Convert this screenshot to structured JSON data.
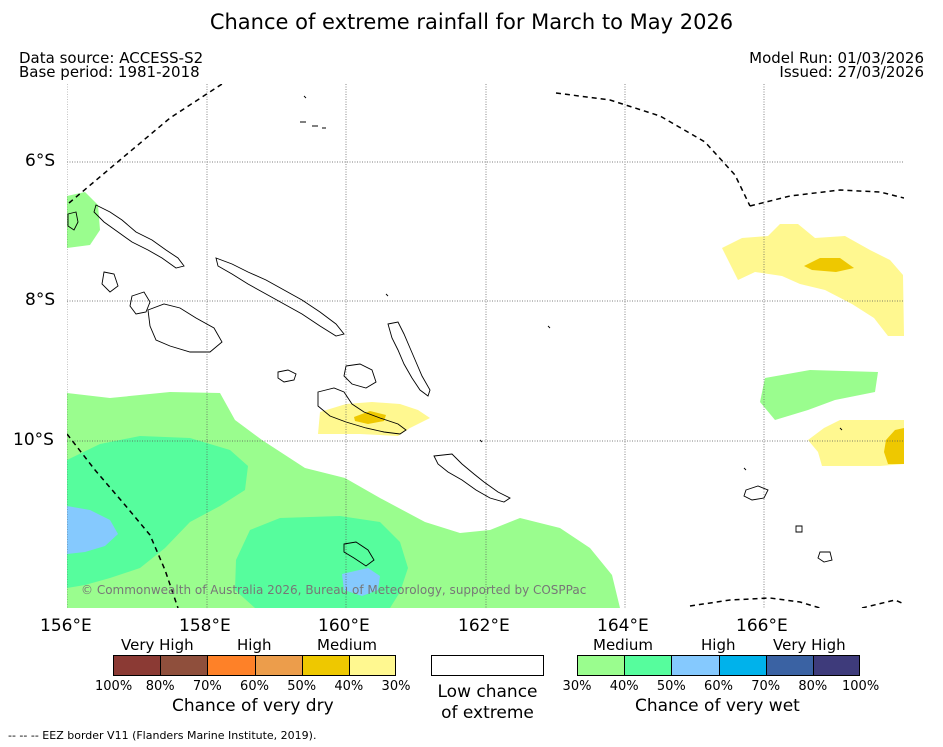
{
  "title": "Chance of extreme rainfall for March to May 2026",
  "meta": {
    "data_source": "Data source: ACCESS-S2",
    "base_period": "Base period: 1981-2018",
    "model_run": "Model Run: 01/03/2026",
    "issued": "Issued: 27/03/2026"
  },
  "axes": {
    "lat_ticks": [
      "6°S",
      "8°S",
      "10°S"
    ],
    "lon_ticks": [
      "156°E",
      "158°E",
      "160°E",
      "162°E",
      "164°E",
      "166°E"
    ]
  },
  "copyright": "© Commonwealth of Australia 2026, Bureau of Meteorology, supported by COSPPac",
  "legend": {
    "dry": {
      "headers": [
        "Very High",
        "High",
        "Medium"
      ],
      "colors": [
        "#8b3a34",
        "#8f4f3c",
        "#fe8128",
        "#ec9d4b",
        "#eec800",
        "#fff890"
      ],
      "ticks": [
        "100%",
        "80%",
        "70%",
        "60%",
        "50%",
        "40%",
        "30%"
      ],
      "label": "Chance of very dry"
    },
    "low": {
      "color": "#ffffff",
      "label_line1": "Low chance",
      "label_line2": "of extreme"
    },
    "wet": {
      "headers": [
        "Medium",
        "High",
        "Very High"
      ],
      "colors": [
        "#9afd8e",
        "#56fd9d",
        "#85c9fe",
        "#00b2eb",
        "#3a62a3",
        "#3e3b7b"
      ],
      "ticks": [
        "30%",
        "40%",
        "50%",
        "60%",
        "70%",
        "80%",
        "100%"
      ],
      "label": "Chance of very wet"
    }
  },
  "footer": "--  --  -- EEZ border V11 (Flanders Marine Institute, 2019)."
}
